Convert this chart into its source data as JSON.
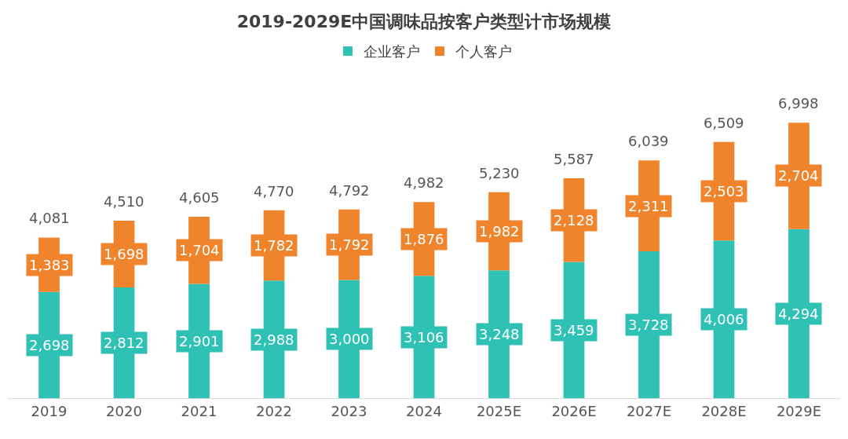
{
  "chart_data": {
    "type": "bar",
    "title": "2019-2029E中国调味品按客户类型计市场规模",
    "stacked": true,
    "legend": "top",
    "categories": [
      "2019",
      "2020",
      "2021",
      "2022",
      "2023",
      "2024",
      "2025E",
      "2026E",
      "2027E",
      "2028E",
      "2029E"
    ],
    "series": [
      {
        "name": "企业客户",
        "color": "#2ec1b4",
        "values": [
          2698,
          2812,
          2901,
          2988,
          3000,
          3106,
          3248,
          3459,
          3728,
          4006,
          4294
        ],
        "value_labels": [
          "2,698",
          "2,812",
          "2,901",
          "2,988",
          "3,000",
          "3,106",
          "3,248",
          "3,459",
          "3,728",
          "4,006",
          "4,294"
        ]
      },
      {
        "name": "个人客户",
        "color": "#f0842c",
        "values": [
          1383,
          1698,
          1704,
          1782,
          1792,
          1876,
          1982,
          2128,
          2311,
          2503,
          2704
        ],
        "value_labels": [
          "1,383",
          "1,698",
          "1,704",
          "1,782",
          "1,792",
          "1,876",
          "1,982",
          "2,128",
          "2,311",
          "2,503",
          "2,704"
        ]
      }
    ],
    "totals": [
      "4,081",
      "4,510",
      "4,605",
      "4,770",
      "4,792",
      "4,982",
      "5,230",
      "5,587",
      "6,039",
      "6,509",
      "6,998"
    ]
  }
}
